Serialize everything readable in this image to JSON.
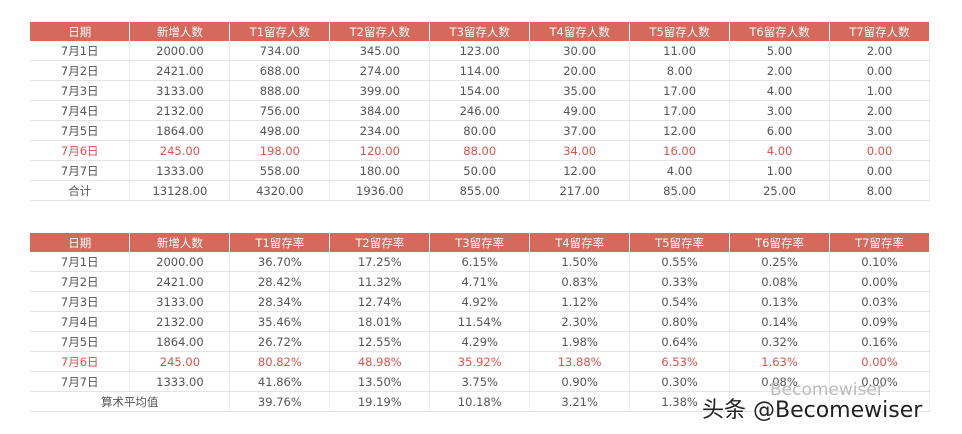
{
  "table1": {
    "header": [
      "日期",
      "新增人数",
      "T1留存人数",
      "T2留存人数",
      "T3留存人数",
      "T4留存人数",
      "T5留存人数",
      "T6留存人数",
      "T7留存人数"
    ],
    "rows": [
      [
        "7月1日",
        "2000.00",
        "734.00",
        "345.00",
        "123.00",
        "30.00",
        "11.00",
        "5.00",
        "2.00"
      ],
      [
        "7月2日",
        "2421.00",
        "688.00",
        "274.00",
        "114.00",
        "20.00",
        "8.00",
        "2.00",
        "0.00"
      ],
      [
        "7月3日",
        "3133.00",
        "888.00",
        "399.00",
        "154.00",
        "35.00",
        "17.00",
        "4.00",
        "1.00"
      ],
      [
        "7月4日",
        "2132.00",
        "756.00",
        "384.00",
        "246.00",
        "49.00",
        "17.00",
        "3.00",
        "2.00"
      ],
      [
        "7月5日",
        "1864.00",
        "498.00",
        "234.00",
        "80.00",
        "37.00",
        "12.00",
        "6.00",
        "3.00"
      ],
      [
        "7月6日",
        "245.00",
        "198.00",
        "120.00",
        "88.00",
        "34.00",
        "16.00",
        "4.00",
        "0.00"
      ],
      [
        "7月7日",
        "1333.00",
        "558.00",
        "180.00",
        "50.00",
        "12.00",
        "4.00",
        "1.00",
        "0.00"
      ],
      [
        "合计",
        "13128.00",
        "4320.00",
        "1936.00",
        "855.00",
        "217.00",
        "85.00",
        "25.00",
        "8.00"
      ]
    ]
  },
  "table2": {
    "header": [
      "日期",
      "新增人数",
      "T1留存率",
      "T2留存率",
      "T3留存率",
      "T4留存率",
      "T5留存率",
      "T6留存率",
      "T7留存率"
    ],
    "rows": [
      [
        "7月1日",
        "2000.00",
        "36.70%",
        "17.25%",
        "6.15%",
        "1.50%",
        "0.55%",
        "0.25%",
        "0.10%"
      ],
      [
        "7月2日",
        "2421.00",
        "28.42%",
        "11.32%",
        "4.71%",
        "0.83%",
        "0.33%",
        "0.08%",
        "0.00%"
      ],
      [
        "7月3日",
        "3133.00",
        "28.34%",
        "12.74%",
        "4.92%",
        "1.12%",
        "0.54%",
        "0.13%",
        "0.03%"
      ],
      [
        "7月4日",
        "2132.00",
        "35.46%",
        "18.01%",
        "11.54%",
        "2.30%",
        "0.80%",
        "0.14%",
        "0.09%"
      ],
      [
        "7月5日",
        "1864.00",
        "26.72%",
        "12.55%",
        "4.29%",
        "1.98%",
        "0.64%",
        "0.32%",
        "0.16%"
      ],
      [
        "7月6日",
        "245.00",
        "80.82%",
        "48.98%",
        "35.92%",
        "13.88%",
        "6.53%",
        "1.63%",
        "0.00%"
      ],
      [
        "7月7日",
        "1333.00",
        "41.86%",
        "13.50%",
        "3.75%",
        "0.90%",
        "0.30%",
        "0.08%",
        "0.00%"
      ]
    ],
    "average": [
      "算术平均值",
      "39.76%",
      "19.19%",
      "10.18%",
      "3.21%",
      "1.38%"
    ]
  },
  "watermark": "头条 @Becomewiser",
  "watermark_faint": "Becomewiser"
}
